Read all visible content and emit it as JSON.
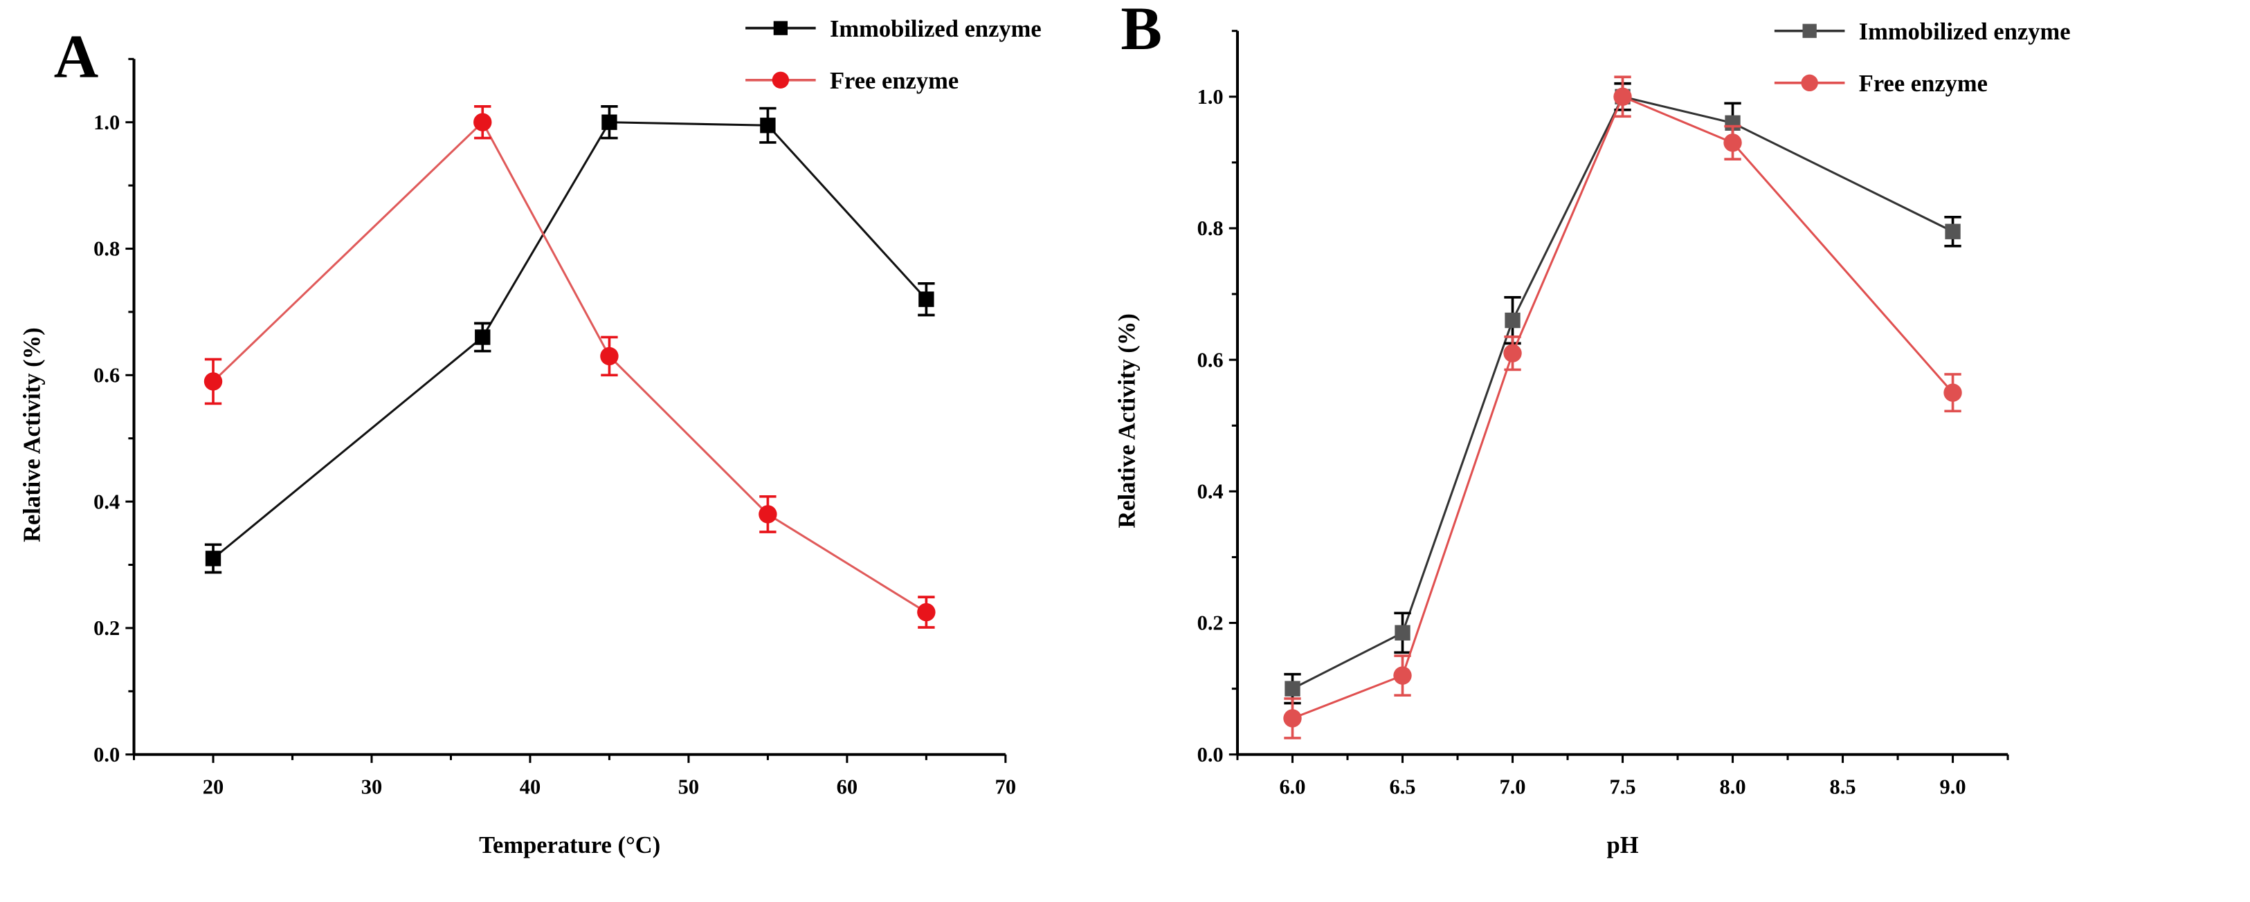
{
  "chart_data": [
    {
      "panel_label": "A",
      "type": "line",
      "xlabel": "Temperature (°C)",
      "ylabel": "Relative Activity (%)",
      "xlim": [
        15,
        70
      ],
      "ylim": [
        0,
        1.1
      ],
      "xticks": [
        20,
        30,
        40,
        50,
        60,
        70
      ],
      "yticks": [
        0.0,
        0.2,
        0.4,
        0.6,
        0.8,
        1.0
      ],
      "legend_position": "top-right",
      "grid": false,
      "series": [
        {
          "name": "Immobilized enzyme",
          "marker": "square",
          "color": "#111111",
          "marker_color": "#000000",
          "x": [
            20,
            37,
            45,
            55,
            65
          ],
          "y": [
            0.31,
            0.66,
            1.0,
            0.995,
            0.72
          ],
          "err": [
            0.022,
            0.022,
            0.025,
            0.027,
            0.025
          ]
        },
        {
          "name": "Free enzyme",
          "marker": "circle",
          "color": "#e05a5a",
          "marker_color": "#e8141b",
          "x": [
            20,
            37,
            45,
            55,
            65
          ],
          "y": [
            0.59,
            1.0,
            0.63,
            0.38,
            0.225
          ],
          "err": [
            0.035,
            0.025,
            0.03,
            0.028,
            0.024
          ]
        }
      ]
    },
    {
      "panel_label": "B",
      "type": "line",
      "xlabel": "pH",
      "ylabel": "Relative Activity (%)",
      "xlim": [
        5.75,
        9.25
      ],
      "ylim": [
        0,
        1.1
      ],
      "xticks": [
        6.0,
        6.5,
        7.0,
        7.5,
        8.0,
        8.5,
        9.0
      ],
      "yticks": [
        0.0,
        0.2,
        0.4,
        0.6,
        0.8,
        1.0
      ],
      "legend_position": "top-right",
      "grid": false,
      "series": [
        {
          "name": "Immobilized enzyme",
          "marker": "square",
          "color": "#333333",
          "marker_color": "#555555",
          "x": [
            6.0,
            6.5,
            7.0,
            7.5,
            8.0,
            9.0
          ],
          "y": [
            0.1,
            0.185,
            0.66,
            1.0,
            0.96,
            0.795
          ],
          "err": [
            0.022,
            0.03,
            0.035,
            0.02,
            0.03,
            0.022
          ]
        },
        {
          "name": "Free enzyme",
          "marker": "circle",
          "color": "#e05050",
          "marker_color": "#e05050",
          "x": [
            6.0,
            6.5,
            7.0,
            7.5,
            8.0,
            9.0
          ],
          "y": [
            0.055,
            0.12,
            0.61,
            1.0,
            0.93,
            0.55
          ],
          "err": [
            0.03,
            0.03,
            0.025,
            0.03,
            0.025,
            0.028
          ]
        }
      ]
    }
  ]
}
